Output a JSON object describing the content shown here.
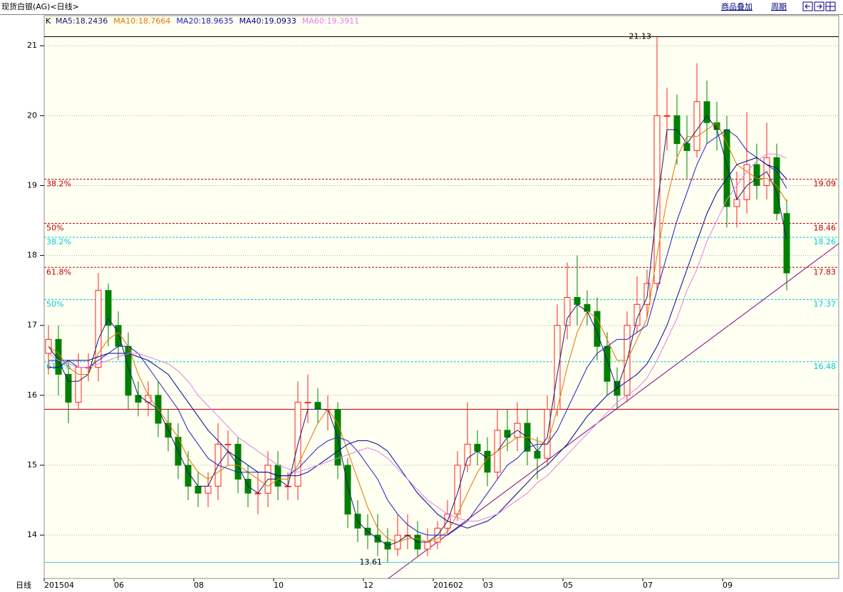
{
  "toolbar": {
    "title": "现货白银(AG)<日线>",
    "buttons": [
      "商品叠加",
      "周期"
    ],
    "period": "日线",
    "k_label": "K"
  },
  "chart_data": {
    "type": "candlestick",
    "categories": [
      "201504",
      null,
      null,
      null,
      null,
      null,
      null,
      "06",
      null,
      null,
      null,
      null,
      null,
      null,
      null,
      "08",
      null,
      null,
      null,
      null,
      null,
      null,
      null,
      "10",
      null,
      null,
      null,
      null,
      null,
      null,
      null,
      null,
      "12",
      null,
      null,
      null,
      null,
      null,
      null,
      "201602",
      null,
      null,
      null,
      null,
      "03",
      null,
      null,
      null,
      null,
      null,
      null,
      null,
      "05",
      null,
      null,
      null,
      null,
      null,
      null,
      null,
      "07",
      null,
      null,
      null,
      null,
      null,
      null,
      null,
      "09",
      null,
      null,
      null,
      null,
      null,
      null
    ],
    "open": [
      16.6,
      16.8,
      16.3,
      15.9,
      16.4,
      16.4,
      17.5,
      17.0,
      16.7,
      16.0,
      15.9,
      16.0,
      15.6,
      15.4,
      15.0,
      14.7,
      14.6,
      14.7,
      15.3,
      15.3,
      14.8,
      14.6,
      14.6,
      15.0,
      14.7,
      14.7,
      15.9,
      15.9,
      15.8,
      15.8,
      15.0,
      14.3,
      14.1,
      14.0,
      13.9,
      13.8,
      14.0,
      14.0,
      13.8,
      13.9,
      14.1,
      14.3,
      15.0,
      15.3,
      15.2,
      14.9,
      15.5,
      15.4,
      15.6,
      15.2,
      15.1,
      15.8,
      17.0,
      17.4,
      17.3,
      17.2,
      16.7,
      16.2,
      16.0,
      17.0,
      17.3,
      17.6,
      20.0,
      20.0,
      19.6,
      19.5,
      20.2,
      19.9,
      19.8,
      18.7,
      18.8,
      19.3,
      19.0,
      19.4,
      18.6
    ],
    "high": [
      17.0,
      17.0,
      16.5,
      16.6,
      16.6,
      17.75,
      17.6,
      17.2,
      16.9,
      16.2,
      16.2,
      16.2,
      15.8,
      15.6,
      15.2,
      14.9,
      14.9,
      15.6,
      15.5,
      15.4,
      15.0,
      14.9,
      15.2,
      15.2,
      14.9,
      16.2,
      16.3,
      16.1,
      16.0,
      15.9,
      15.1,
      14.5,
      14.3,
      14.3,
      14.1,
      14.3,
      14.3,
      14.2,
      14.1,
      14.2,
      14.5,
      15.2,
      15.9,
      15.5,
      15.4,
      15.8,
      15.8,
      15.9,
      15.8,
      15.4,
      16.0,
      17.3,
      17.9,
      18.0,
      17.5,
      17.4,
      16.9,
      16.4,
      17.2,
      17.7,
      17.8,
      21.13,
      20.4,
      20.3,
      20.0,
      20.75,
      20.5,
      20.2,
      20.0,
      19.2,
      20.05,
      19.6,
      19.9,
      19.6,
      18.8
    ],
    "low": [
      16.3,
      16.0,
      15.6,
      15.8,
      16.2,
      16.2,
      16.7,
      16.5,
      15.8,
      15.7,
      15.7,
      15.4,
      15.2,
      14.8,
      14.5,
      14.4,
      14.4,
      14.5,
      15.0,
      14.6,
      14.4,
      14.3,
      14.4,
      14.5,
      14.5,
      14.5,
      15.6,
      15.6,
      15.5,
      14.8,
      14.1,
      13.9,
      13.8,
      13.7,
      13.61,
      13.7,
      13.8,
      13.7,
      13.7,
      13.8,
      14.0,
      14.2,
      14.9,
      15.0,
      14.7,
      14.8,
      15.2,
      15.2,
      15.0,
      14.8,
      15.0,
      15.7,
      16.8,
      17.0,
      17.0,
      16.5,
      16.0,
      15.8,
      15.9,
      16.9,
      17.1,
      17.5,
      19.5,
      19.3,
      19.1,
      19.4,
      19.6,
      19.5,
      18.4,
      18.4,
      18.6,
      18.8,
      18.8,
      18.5,
      17.5
    ],
    "close": [
      16.8,
      16.3,
      15.9,
      16.4,
      16.4,
      17.5,
      17.0,
      16.7,
      16.0,
      15.9,
      16.0,
      15.6,
      15.4,
      15.0,
      14.7,
      14.6,
      14.7,
      15.3,
      15.3,
      14.8,
      14.6,
      14.6,
      15.0,
      14.7,
      14.7,
      15.9,
      15.9,
      15.8,
      15.8,
      15.0,
      14.3,
      14.1,
      14.0,
      13.9,
      13.8,
      14.0,
      14.0,
      13.8,
      13.9,
      14.1,
      14.3,
      15.0,
      15.3,
      15.2,
      14.9,
      15.5,
      15.4,
      15.6,
      15.2,
      15.1,
      15.8,
      17.0,
      17.4,
      17.3,
      17.2,
      16.7,
      16.2,
      16.0,
      17.0,
      17.3,
      17.6,
      20.0,
      20.0,
      19.6,
      19.5,
      20.2,
      19.9,
      19.8,
      18.7,
      18.8,
      19.3,
      19.0,
      19.4,
      18.6,
      17.75
    ],
    "up_color": "#ff2020",
    "down_color": "#008000",
    "series": [
      {
        "name": "MA5:18.2436",
        "color": "#1a1a70",
        "values": [
          16.7,
          16.5,
          16.2,
          16.2,
          16.3,
          16.8,
          17.1,
          16.9,
          16.4,
          16.0,
          15.9,
          15.8,
          15.5,
          15.2,
          14.9,
          14.7,
          14.7,
          15.0,
          15.2,
          15.0,
          14.7,
          14.6,
          14.8,
          14.8,
          14.7,
          15.3,
          15.8,
          15.8,
          15.8,
          15.4,
          14.7,
          14.2,
          14.05,
          13.95,
          13.85,
          13.9,
          14.0,
          13.9,
          13.9,
          14.0,
          14.2,
          14.6,
          15.1,
          15.2,
          15.1,
          15.2,
          15.4,
          15.5,
          15.4,
          15.2,
          15.4,
          16.3,
          17.1,
          17.3,
          17.2,
          16.9,
          16.5,
          16.1,
          16.5,
          17.1,
          17.4,
          18.7,
          19.8,
          19.8,
          19.6,
          19.8,
          20.0,
          19.8,
          19.3,
          18.8,
          19.0,
          19.1,
          19.2,
          18.9,
          18.24
        ]
      },
      {
        "name": "MA10:18.7664",
        "color": "#e07800",
        "values": [
          16.7,
          16.6,
          16.4,
          16.3,
          16.3,
          16.6,
          16.8,
          16.9,
          16.7,
          16.3,
          16.0,
          15.8,
          15.6,
          15.4,
          15.1,
          14.9,
          14.8,
          14.9,
          15.0,
          15.0,
          14.9,
          14.8,
          14.7,
          14.8,
          14.8,
          15.0,
          15.3,
          15.6,
          15.8,
          15.6,
          15.2,
          14.8,
          14.4,
          14.1,
          13.95,
          13.9,
          13.95,
          13.95,
          13.9,
          13.95,
          14.05,
          14.3,
          14.6,
          14.9,
          15.1,
          15.2,
          15.3,
          15.4,
          15.4,
          15.35,
          15.3,
          15.8,
          16.4,
          16.9,
          17.2,
          17.1,
          16.8,
          16.5,
          16.5,
          16.8,
          17.1,
          18.0,
          18.8,
          19.4,
          19.7,
          19.7,
          19.8,
          19.9,
          19.6,
          19.3,
          19.2,
          19.1,
          19.1,
          19.0,
          18.77
        ]
      },
      {
        "name": "MA20:18.9635",
        "color": "#2020c0",
        "values": [
          16.5,
          16.5,
          16.5,
          16.4,
          16.4,
          16.5,
          16.6,
          16.7,
          16.7,
          16.6,
          16.4,
          16.2,
          16.0,
          15.8,
          15.5,
          15.3,
          15.1,
          15.0,
          14.95,
          14.9,
          14.9,
          14.9,
          14.9,
          14.85,
          14.85,
          14.95,
          15.1,
          15.25,
          15.35,
          15.4,
          15.35,
          15.2,
          15.0,
          14.8,
          14.5,
          14.3,
          14.15,
          14.05,
          14.0,
          14.0,
          14.0,
          14.1,
          14.2,
          14.4,
          14.6,
          14.8,
          15.0,
          15.1,
          15.25,
          15.3,
          15.3,
          15.5,
          15.8,
          16.1,
          16.4,
          16.6,
          16.7,
          16.8,
          16.8,
          16.9,
          17.0,
          17.5,
          18.0,
          18.5,
          18.9,
          19.3,
          19.6,
          19.7,
          19.8,
          19.7,
          19.5,
          19.4,
          19.3,
          19.2,
          18.96
        ]
      },
      {
        "name": "MA40:19.0933",
        "color": "#000090",
        "values": [
          16.4,
          16.4,
          16.5,
          16.5,
          16.5,
          16.55,
          16.6,
          16.6,
          16.6,
          16.55,
          16.5,
          16.4,
          16.3,
          16.1,
          15.9,
          15.7,
          15.5,
          15.35,
          15.2,
          15.1,
          15.0,
          14.9,
          14.9,
          14.85,
          14.85,
          14.85,
          14.9,
          15.0,
          15.1,
          15.2,
          15.3,
          15.35,
          15.35,
          15.3,
          15.2,
          15.0,
          14.8,
          14.6,
          14.45,
          14.3,
          14.2,
          14.15,
          14.1,
          14.15,
          14.2,
          14.3,
          14.45,
          14.6,
          14.75,
          14.9,
          15.0,
          15.15,
          15.3,
          15.5,
          15.7,
          15.85,
          16.0,
          16.1,
          16.2,
          16.3,
          16.45,
          16.7,
          17.0,
          17.4,
          17.8,
          18.2,
          18.6,
          18.9,
          19.1,
          19.3,
          19.35,
          19.4,
          19.3,
          19.25,
          19.09
        ]
      },
      {
        "name": "MA60:19.3911",
        "color": "#e080e8",
        "values": [
          16.6,
          16.5,
          16.45,
          16.4,
          16.4,
          16.45,
          16.5,
          16.55,
          16.6,
          16.6,
          16.55,
          16.5,
          16.45,
          16.35,
          16.2,
          16.0,
          15.85,
          15.7,
          15.55,
          15.4,
          15.3,
          15.2,
          15.1,
          15.0,
          14.95,
          14.9,
          14.95,
          15.0,
          15.05,
          15.1,
          15.15,
          15.2,
          15.25,
          15.2,
          15.1,
          14.95,
          14.8,
          14.65,
          14.5,
          14.4,
          14.3,
          14.25,
          14.2,
          14.2,
          14.25,
          14.3,
          14.4,
          14.5,
          14.6,
          14.75,
          14.85,
          15.0,
          15.15,
          15.3,
          15.45,
          15.6,
          15.75,
          15.9,
          16.0,
          16.1,
          16.25,
          16.5,
          16.8,
          17.1,
          17.5,
          17.8,
          18.2,
          18.5,
          18.8,
          19.0,
          19.2,
          19.35,
          19.45,
          19.45,
          19.39
        ]
      }
    ],
    "ylim": [
      13.38,
      21.43
    ],
    "yticks": [
      14,
      15,
      16,
      17,
      18,
      19,
      20,
      21
    ],
    "grid": true,
    "levels": [
      {
        "label": "38.2%",
        "value": 19.09,
        "color": "#c00000"
      },
      {
        "label": "50%",
        "value": 18.46,
        "color": "#c00000"
      },
      {
        "label": "61.8%",
        "value": 17.83,
        "color": "#c00000"
      },
      {
        "label": "38.2%",
        "value": 18.26,
        "color": "#00c8e0"
      },
      {
        "label": "50%",
        "value": 17.37,
        "color": "#00c8e0"
      },
      {
        "label": "61.8%",
        "value": 16.48,
        "color": "#00c8e0"
      }
    ],
    "reference_lines": [
      {
        "value": 21.13,
        "color": "#000000"
      },
      {
        "value": 15.8,
        "color": "#c00000"
      },
      {
        "value": 13.61,
        "color": "#40c8e0"
      }
    ]
  }
}
